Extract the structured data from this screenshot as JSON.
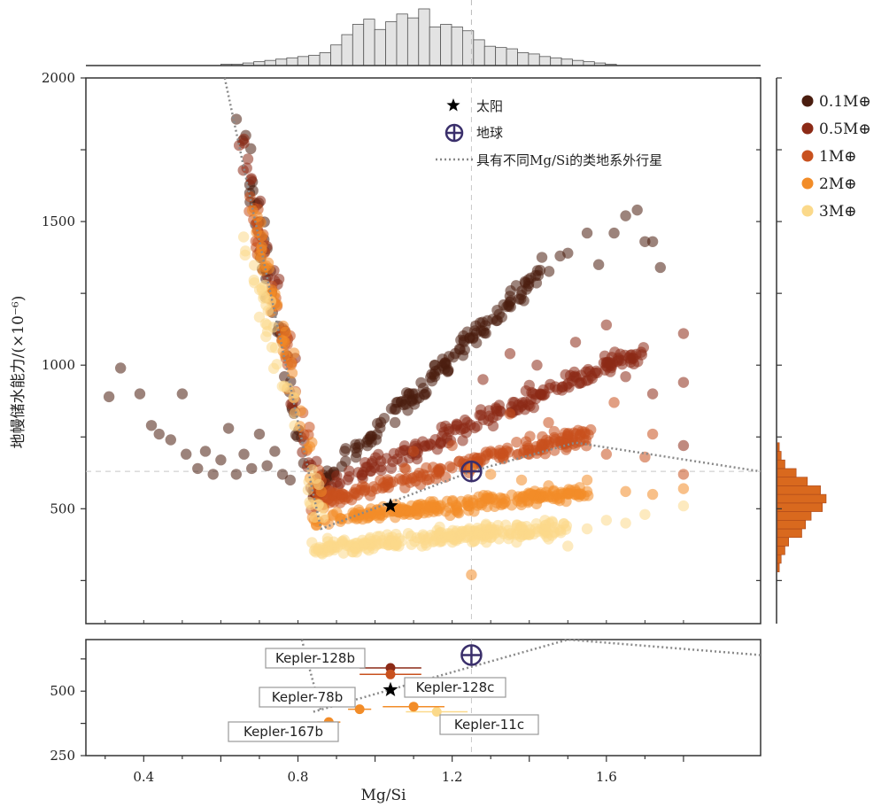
{
  "chart_data": [
    {
      "panel": "main",
      "type": "scatter",
      "xlabel": "Mg/Si",
      "ylabel": "地幔储水能力/(×10⁻⁶)",
      "xlim": [
        0.25,
        2.0
      ],
      "ylim": [
        100,
        2000
      ],
      "yticks": [
        "2000",
        "1500",
        "1000",
        "500"
      ],
      "reference_lines": {
        "x": 1.25,
        "y": 630
      },
      "legend": {
        "position": "top-center",
        "sun_label": "太阳",
        "earth_label": "地球",
        "line_label": "具有不同Mg/Si的类地系外行星"
      },
      "sun": {
        "x": 1.04,
        "y": 510
      },
      "earth": {
        "x": 1.25,
        "y": 630
      },
      "trend_line": [
        [
          0.61,
          2000
        ],
        [
          0.84,
          550
        ],
        [
          0.86,
          430
        ],
        [
          1.25,
          630
        ],
        [
          1.52,
          730
        ],
        [
          2.0,
          630
        ]
      ],
      "mass_series": [
        {
          "name": "0.1M⊕",
          "color": "#4a1d0f"
        },
        {
          "name": "0.5M⊕",
          "color": "#8c2a16"
        },
        {
          "name": "1M⊕",
          "color": "#c8511e"
        },
        {
          "name": "2M⊕",
          "color": "#f28c28"
        },
        {
          "name": "3M⊕",
          "color": "#fbd98a"
        }
      ],
      "clusters": [
        {
          "series": 0,
          "kind": "line",
          "from": [
            0.84,
            560
          ],
          "to": [
            1.45,
            1350
          ],
          "n": 160,
          "spread": [
            0.02,
            45
          ]
        },
        {
          "series": 0,
          "kind": "points",
          "points": [
            [
              0.31,
              890
            ],
            [
              0.34,
              990
            ],
            [
              0.39,
              900
            ],
            [
              0.42,
              790
            ],
            [
              0.44,
              760
            ],
            [
              0.47,
              740
            ],
            [
              0.5,
              900
            ],
            [
              0.51,
              690
            ],
            [
              0.54,
              640
            ],
            [
              0.56,
              700
            ],
            [
              0.58,
              620
            ],
            [
              0.6,
              670
            ],
            [
              0.62,
              780
            ],
            [
              0.64,
              620
            ],
            [
              0.66,
              690
            ],
            [
              0.68,
              640
            ],
            [
              0.7,
              760
            ],
            [
              0.72,
              650
            ],
            [
              0.74,
              700
            ],
            [
              0.76,
              620
            ],
            [
              0.78,
              600
            ],
            [
              1.48,
              1380
            ],
            [
              1.5,
              1390
            ],
            [
              1.55,
              1460
            ],
            [
              1.58,
              1350
            ],
            [
              1.62,
              1460
            ],
            [
              1.65,
              1520
            ],
            [
              1.68,
              1540
            ],
            [
              1.7,
              1430
            ],
            [
              1.72,
              1430
            ],
            [
              1.74,
              1340
            ]
          ]
        },
        {
          "series": 0,
          "kind": "line",
          "from": [
            0.64,
            1900
          ],
          "to": [
            0.82,
            600
          ],
          "n": 45,
          "spread": [
            0.02,
            60
          ]
        },
        {
          "series": 1,
          "kind": "line",
          "from": [
            0.84,
            560
          ],
          "to": [
            1.7,
            1050
          ],
          "n": 200,
          "spread": [
            0.02,
            50
          ]
        },
        {
          "series": 1,
          "kind": "points",
          "points": [
            [
              1.35,
              1040
            ],
            [
              1.42,
              1000
            ],
            [
              1.52,
              1080
            ],
            [
              1.6,
              1140
            ],
            [
              1.65,
              960
            ],
            [
              1.72,
              900
            ],
            [
              1.8,
              1110
            ],
            [
              1.8,
              940
            ],
            [
              1.8,
              720
            ],
            [
              1.28,
              950
            ],
            [
              1.4,
              930
            ]
          ]
        },
        {
          "series": 1,
          "kind": "line",
          "from": [
            0.66,
            1780
          ],
          "to": [
            0.84,
            580
          ],
          "n": 40,
          "spread": [
            0.025,
            60
          ]
        },
        {
          "series": 2,
          "kind": "line",
          "from": [
            0.84,
            520
          ],
          "to": [
            1.55,
            760
          ],
          "n": 200,
          "spread": [
            0.03,
            45
          ]
        },
        {
          "series": 2,
          "kind": "points",
          "points": [
            [
              1.1,
              700
            ],
            [
              1.2,
              720
            ],
            [
              1.3,
              700
            ],
            [
              1.4,
              690
            ],
            [
              1.5,
              760
            ],
            [
              1.6,
              690
            ],
            [
              1.7,
              680
            ],
            [
              1.8,
              620
            ],
            [
              1.35,
              830
            ],
            [
              1.45,
              800
            ],
            [
              1.62,
              870
            ],
            [
              1.72,
              760
            ]
          ]
        },
        {
          "series": 2,
          "kind": "line",
          "from": [
            0.67,
            1600
          ],
          "to": [
            0.86,
            560
          ],
          "n": 45,
          "spread": [
            0.025,
            60
          ]
        },
        {
          "series": 3,
          "kind": "line",
          "from": [
            0.84,
            460
          ],
          "to": [
            1.55,
            560
          ],
          "n": 230,
          "spread": [
            0.03,
            35
          ]
        },
        {
          "series": 3,
          "kind": "points",
          "points": [
            [
              1.25,
              640
            ],
            [
              1.3,
              620
            ],
            [
              1.38,
              600
            ],
            [
              1.45,
              580
            ],
            [
              1.55,
              560
            ],
            [
              1.65,
              560
            ],
            [
              1.72,
              550
            ],
            [
              1.8,
              570
            ],
            [
              1.25,
              270
            ],
            [
              1.55,
              600
            ]
          ]
        },
        {
          "series": 3,
          "kind": "line",
          "from": [
            0.68,
            1550
          ],
          "to": [
            0.86,
            520
          ],
          "n": 45,
          "spread": [
            0.025,
            60
          ]
        },
        {
          "series": 4,
          "kind": "line",
          "from": [
            0.84,
            360
          ],
          "to": [
            1.5,
            440
          ],
          "n": 260,
          "spread": [
            0.04,
            45
          ]
        },
        {
          "series": 4,
          "kind": "points",
          "points": [
            [
              1.55,
              430
            ],
            [
              1.6,
              460
            ],
            [
              1.65,
              450
            ],
            [
              1.7,
              480
            ],
            [
              1.8,
              510
            ],
            [
              1.5,
              370
            ],
            [
              1.4,
              410
            ]
          ]
        },
        {
          "series": 4,
          "kind": "line",
          "from": [
            0.66,
            1450
          ],
          "to": [
            0.86,
            460
          ],
          "n": 45,
          "spread": [
            0.03,
            60
          ]
        }
      ],
      "top_histogram": {
        "bin_start": 0.6,
        "bin_width": 0.0285,
        "counts": [
          1,
          1,
          2,
          3,
          4,
          5,
          6,
          7,
          8,
          10,
          16,
          24,
          32,
          36,
          28,
          34,
          40,
          37,
          44,
          30,
          32,
          30,
          27,
          20,
          15,
          14,
          13,
          10,
          9,
          7,
          6,
          5,
          4,
          3,
          2,
          1
        ]
      },
      "right_histogram": {
        "color": "#d9691e",
        "bin_start": 280,
        "bin_height": 30,
        "counts": [
          2,
          4,
          8,
          12,
          26,
          30,
          36,
          48,
          52,
          46,
          32,
          20,
          8,
          4,
          2
        ]
      }
    },
    {
      "panel": "bottom",
      "type": "scatter",
      "xlabel": "Mg/Si",
      "xlim": [
        0.25,
        2.0
      ],
      "ylim": [
        250,
        700
      ],
      "xticks": [
        "0.4",
        "0.8",
        "1.2",
        "1.6"
      ],
      "yticks": [
        "500",
        "250"
      ],
      "sun": {
        "x": 1.04,
        "y": 505
      },
      "earth": {
        "x": 1.25,
        "y": 640
      },
      "trend_line": [
        [
          0.84,
          420
        ],
        [
          1.05,
          510
        ],
        [
          1.5,
          700
        ],
        [
          2.0,
          640
        ]
      ],
      "planets": [
        {
          "label": "Kepler-128b",
          "x": 1.04,
          "y": 590,
          "xerr": 0.08,
          "color": "#8c2a16"
        },
        {
          "label": "Kepler-128c",
          "x": 1.04,
          "y": 565,
          "xerr": 0.08,
          "color": "#c8511e"
        },
        {
          "label": "Kepler-78b",
          "x": 0.96,
          "y": 430,
          "xerr": 0.03,
          "color": "#f28c28"
        },
        {
          "label": "Kepler-167b",
          "x": 0.88,
          "y": 380,
          "xerr": 0.03,
          "color": "#f28c28"
        },
        {
          "label": "Kepler-11c",
          "x": 1.16,
          "y": 420,
          "xerr": 0.08,
          "color": "#fbd98a"
        },
        {
          "label": "",
          "x": 1.1,
          "y": 440,
          "xerr": 0.08,
          "color": "#f28c28"
        }
      ]
    }
  ]
}
